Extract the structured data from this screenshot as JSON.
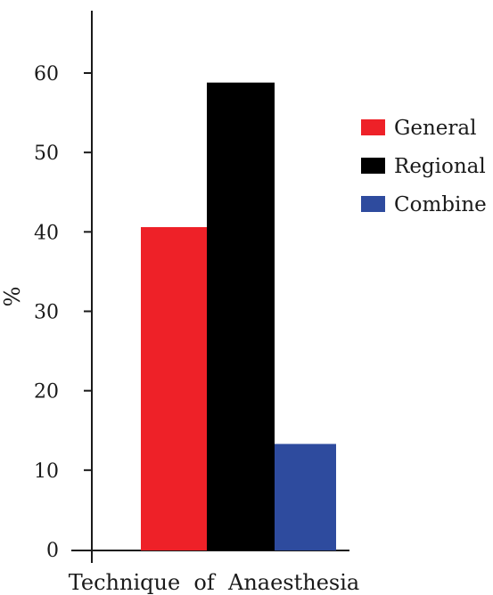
{
  "chart_data": {
    "type": "bar",
    "title": "",
    "xlabel": "Technique  of  Anaesthesia",
    "ylabel": "%",
    "ylim": [
      0,
      60
    ],
    "yticks": [
      0,
      10,
      20,
      30,
      40,
      50,
      60
    ],
    "grid": false,
    "legend_position": "right",
    "series": [
      {
        "name": "General",
        "value": 40.6,
        "color": "#ee2128"
      },
      {
        "name": "Regional",
        "value": 58.8,
        "color": "#000000"
      },
      {
        "name": "Combine",
        "value": 13.3,
        "color": "#2e4b9e"
      }
    ]
  }
}
